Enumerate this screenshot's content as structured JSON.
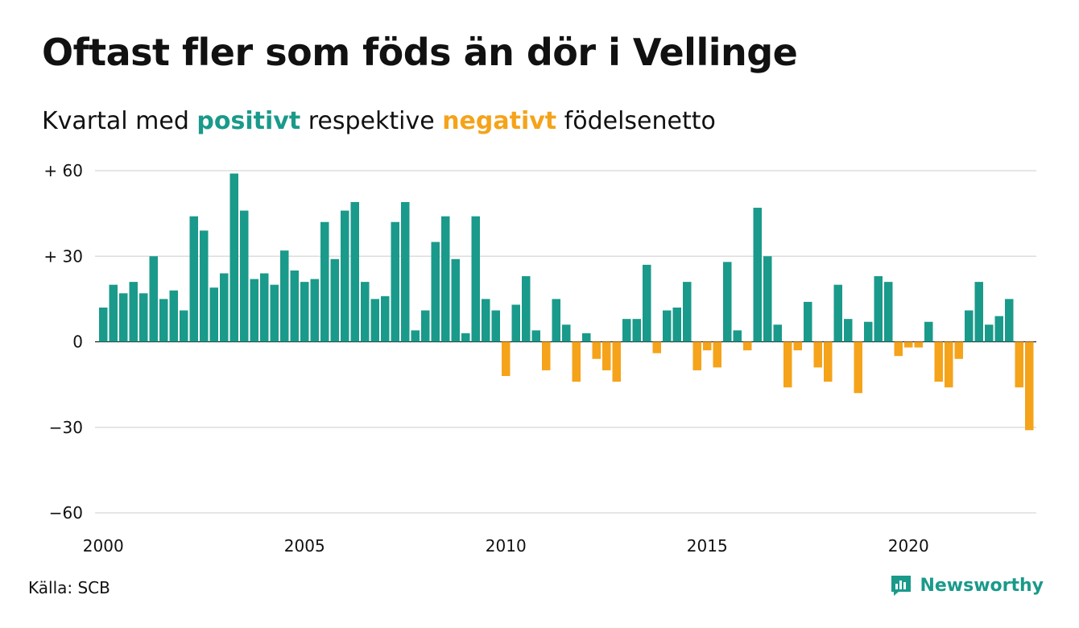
{
  "title": "Oftast fler som föds än dör i Vellinge",
  "subtitle": {
    "prefix": "Kvartal med ",
    "positive": "positivt",
    "middle": " respektive ",
    "negative": "negativt",
    "suffix": " födelsenetto"
  },
  "source": "Källa: SCB",
  "brand": {
    "name": "Newsworthy",
    "icon": "newsworthy-logo-icon"
  },
  "colors": {
    "positive": "#1a9a8a",
    "negative": "#f5a31a",
    "grid": "#dddddd",
    "text": "#111111"
  },
  "chart_data": {
    "type": "bar",
    "title": "Oftast fler som föds än dör i Vellinge",
    "subtitle": "Kvartal med positivt respektive negativt födelsenetto",
    "xlabel": "",
    "ylabel": "",
    "x_ticks": [
      "2000",
      "2005",
      "2010",
      "2015",
      "2020"
    ],
    "y_ticks": [
      {
        "value": 60,
        "label": "+ 60"
      },
      {
        "value": 30,
        "label": "+ 30"
      },
      {
        "value": 0,
        "label": "0"
      },
      {
        "value": -30,
        "label": "−30"
      },
      {
        "value": -60,
        "label": "−60"
      }
    ],
    "ylim": [
      -60,
      60
    ],
    "grid": true,
    "x_start": "2000 Q1",
    "values": [
      12,
      20,
      17,
      21,
      17,
      30,
      15,
      18,
      11,
      44,
      39,
      19,
      24,
      59,
      46,
      22,
      24,
      20,
      32,
      25,
      21,
      22,
      42,
      29,
      46,
      49,
      21,
      15,
      16,
      42,
      49,
      4,
      11,
      35,
      44,
      29,
      3,
      44,
      15,
      11,
      -12,
      13,
      23,
      4,
      -10,
      15,
      6,
      -14,
      3,
      -6,
      -10,
      -14,
      8,
      8,
      27,
      -4,
      11,
      12,
      21,
      -10,
      -3,
      -9,
      28,
      4,
      -3,
      47,
      30,
      6,
      -16,
      -3,
      14,
      -9,
      -14,
      20,
      8,
      -18,
      7,
      23,
      21,
      -5,
      -2,
      -2,
      7,
      -14,
      -16,
      -6,
      11,
      21,
      6,
      9,
      15,
      -16,
      -31
    ]
  }
}
